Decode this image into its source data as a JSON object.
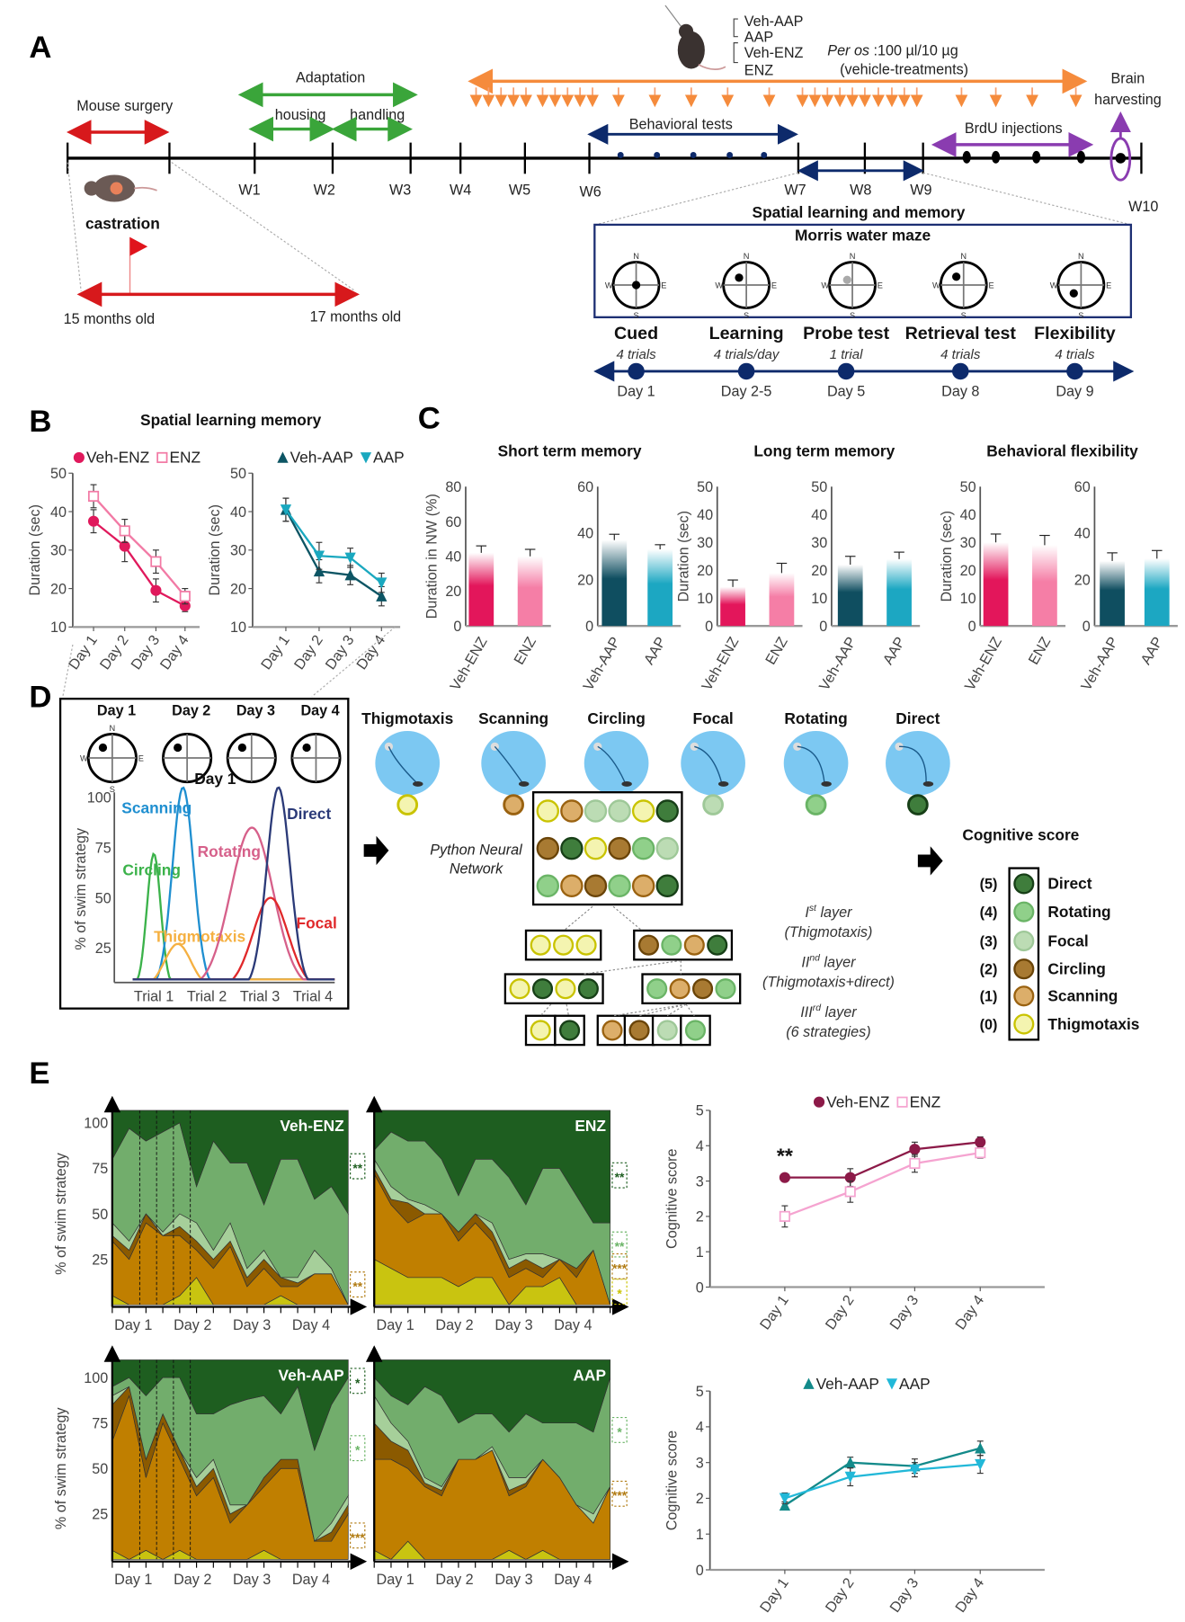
{
  "panel_labels": {
    "a": "A",
    "b": "B",
    "c": "C",
    "d": "D",
    "e": "E"
  },
  "timeline": {
    "weeks": [
      "W1",
      "W2",
      "W3",
      "W4",
      "W5",
      "W6",
      "W7",
      "W8",
      "W9",
      "W10"
    ],
    "mouse_surgery": "Mouse surgery",
    "adaptation": "Adaptation",
    "housing": "housing",
    "handling": "handling",
    "groups": [
      "Veh-AAP",
      "AAP",
      "Veh-ENZ",
      "ENZ"
    ],
    "per_os": "Per os",
    "dose": " :100 µl/10 µg",
    "vehicle": "(vehicle-treatments)",
    "brain": "Brain",
    "harvesting": "harvesting",
    "behavioral_tests": "Behavioral tests",
    "brdu": "BrdU injections",
    "castration": "castration",
    "age_start": "15 months old",
    "age_end": "17 months old",
    "colors": {
      "surgery": "#d7191c",
      "adaptation": "#3aa53a",
      "treatment": "#f58b3c",
      "tests": "#0d2a6b",
      "brdu": "#8a3cb0"
    }
  },
  "mwm": {
    "title": "Spatial learning and memory",
    "box_title": "Morris water maze",
    "compass": {
      "n": "N",
      "s": "S",
      "w": "W",
      "e": "E"
    },
    "phases": [
      {
        "name": "Cued",
        "trials": "4 trials",
        "day": "Day 1"
      },
      {
        "name": "Learning",
        "trials": "4 trials/day",
        "day": "Day 2-5"
      },
      {
        "name": "Probe test",
        "trials": "1 trial",
        "day": "Day 5"
      },
      {
        "name": "Retrieval test",
        "trials": "4 trials",
        "day": "Day 8"
      },
      {
        "name": "Flexibility",
        "trials": "4 trials",
        "day": "Day 9"
      }
    ]
  },
  "panel_b": {
    "title": "Spatial learning memory"
  },
  "panel_c": {
    "titles": [
      "Short term memory",
      "Long term memory",
      "Behavioral flexibility"
    ]
  },
  "panel_d": {
    "days": [
      "Day 1",
      "Day 2",
      "Day 3",
      "Day 4"
    ],
    "compass": {
      "n": "N",
      "s": "S",
      "w": "W",
      "e": "E"
    },
    "network": [
      "Python Neural",
      "Network"
    ],
    "layers": [
      {
        "num": "I",
        "sup": "st",
        "text": " layer",
        "desc": "(Thigmotaxis)"
      },
      {
        "num": "II",
        "sup": "nd",
        "text": " layer",
        "desc": "(Thigmotaxis+direct)"
      },
      {
        "num": "III",
        "sup": "rd",
        "text": " layer",
        "desc": "(6 strategies)"
      }
    ],
    "cognitive_score": "Cognitive score",
    "strategies": [
      {
        "name": "Thigmotaxis",
        "score": "(0)",
        "fill": "#f4f4b0",
        "stroke": "#c9c300"
      },
      {
        "name": "Scanning",
        "score": "(1)",
        "fill": "#dcae6a",
        "stroke": "#9a6210"
      },
      {
        "name": "Circling",
        "score": "(2)",
        "fill": "#a87a32",
        "stroke": "#6a4408"
      },
      {
        "name": "Focal",
        "score": "(3)",
        "fill": "#bcdcb4",
        "stroke": "#9ec898"
      },
      {
        "name": "Rotating",
        "score": "(4)",
        "fill": "#90d08a",
        "stroke": "#6ab466"
      },
      {
        "name": "Direct",
        "score": "(5)",
        "fill": "#3f7d3c",
        "stroke": "#173f17"
      }
    ],
    "network_grid": [
      [
        0,
        1,
        3,
        3,
        0,
        5
      ],
      [
        2,
        5,
        0,
        2,
        4,
        3
      ],
      [
        4,
        1,
        2,
        4,
        1,
        5
      ]
    ],
    "layer1": [
      [
        0,
        0,
        0
      ],
      [
        2,
        4,
        1,
        5
      ]
    ],
    "layer2": [
      [
        0,
        5,
        0,
        5
      ],
      [
        4,
        1,
        2,
        4
      ]
    ],
    "layer3": [
      [
        0
      ],
      [
        5
      ],
      [
        1
      ],
      [
        2
      ],
      [
        3
      ],
      [
        4
      ]
    ]
  },
  "chart_data": [
    {
      "id": "b-enz",
      "type": "line",
      "title": "Spatial learning memory",
      "ylabel": "Duration (sec)",
      "ylim": [
        10,
        50
      ],
      "yticks": [
        10,
        20,
        30,
        40,
        50
      ],
      "categories": [
        "Day 1",
        "Day 2",
        "Day 3",
        "Day 4"
      ],
      "series": [
        {
          "name": "Veh-ENZ",
          "values": [
            37.5,
            31,
            19.5,
            15.5
          ],
          "errors": [
            3,
            4,
            3,
            1.5
          ],
          "color": "#e0195c",
          "marker": "circle"
        },
        {
          "name": "ENZ",
          "values": [
            44,
            35,
            27,
            18
          ],
          "errors": [
            3,
            3,
            3,
            2
          ],
          "color": "#f27aa5",
          "marker": "square"
        }
      ]
    },
    {
      "id": "b-aap",
      "type": "line",
      "ylabel": "Duration (sec)",
      "ylim": [
        10,
        50
      ],
      "yticks": [
        10,
        20,
        30,
        40,
        50
      ],
      "categories": [
        "Day 1",
        "Day 2",
        "Day 3",
        "Day 4"
      ],
      "series": [
        {
          "name": "Veh-AAP",
          "values": [
            40.5,
            24.5,
            23.5,
            18
          ],
          "errors": [
            3,
            3,
            2.5,
            2.5
          ],
          "color": "#0d5564",
          "marker": "triangle"
        },
        {
          "name": "AAP",
          "values": [
            40.5,
            28.5,
            28,
            21.5
          ],
          "errors": [
            3,
            3.5,
            2.5,
            2.5
          ],
          "color": "#1aa8bf",
          "marker": "tri-down"
        }
      ]
    },
    {
      "id": "c1",
      "type": "bar",
      "group": "Short term memory",
      "ylabel": "Duration in NW (%)",
      "ylim": [
        0,
        80
      ],
      "yticks": [
        0,
        20,
        40,
        60,
        80
      ],
      "categories": [
        "Veh-ENZ",
        "ENZ"
      ],
      "values": [
        42,
        40
      ],
      "errors": [
        4,
        4
      ],
      "colors": [
        "#e3165b",
        "#f57ea6"
      ]
    },
    {
      "id": "c2",
      "type": "bar",
      "group": "Short term memory",
      "ylim": [
        0,
        60
      ],
      "yticks": [
        0,
        20,
        40,
        60
      ],
      "categories": [
        "Veh-AAP",
        "AAP"
      ],
      "values": [
        37,
        33
      ],
      "errors": [
        2.5,
        2
      ],
      "colors": [
        "#0f4e60",
        "#1ca7c2"
      ]
    },
    {
      "id": "c3",
      "type": "bar",
      "group": "Long term memory",
      "ylabel": "Duration (sec)",
      "ylim": [
        0,
        50
      ],
      "yticks": [
        0,
        10,
        20,
        30,
        40,
        50
      ],
      "categories": [
        "Veh-ENZ",
        "ENZ"
      ],
      "values": [
        14,
        19
      ],
      "errors": [
        2.5,
        3.5
      ],
      "colors": [
        "#e3165b",
        "#f57ea6"
      ]
    },
    {
      "id": "c4",
      "type": "bar",
      "group": "Long term memory",
      "ylim": [
        0,
        50
      ],
      "yticks": [
        0,
        10,
        20,
        30,
        40,
        50
      ],
      "categories": [
        "Veh-AAP",
        "AAP"
      ],
      "values": [
        22,
        24
      ],
      "errors": [
        3,
        2.5
      ],
      "colors": [
        "#0f4e60",
        "#1ca7c2"
      ]
    },
    {
      "id": "c5",
      "type": "bar",
      "group": "Behavioral flexibility",
      "ylabel": "Duration (sec)",
      "ylim": [
        0,
        50
      ],
      "yticks": [
        0,
        10,
        20,
        30,
        40,
        50
      ],
      "categories": [
        "Veh-ENZ",
        "ENZ"
      ],
      "values": [
        30,
        29
      ],
      "errors": [
        3,
        3.5
      ],
      "colors": [
        "#e3165b",
        "#f57ea6"
      ]
    },
    {
      "id": "c6",
      "type": "bar",
      "group": "Behavioral flexibility",
      "ylim": [
        0,
        60
      ],
      "yticks": [
        0,
        20,
        40,
        60
      ],
      "categories": [
        "Veh-AAP",
        "AAP"
      ],
      "values": [
        28,
        29
      ],
      "errors": [
        3.5,
        3.5
      ],
      "colors": [
        "#0f4e60",
        "#1ca7c2"
      ]
    },
    {
      "id": "d-curves",
      "type": "line",
      "title": "Day 1",
      "ylabel": "% of swim strategy",
      "yticks": [
        25,
        50,
        75,
        100
      ],
      "categories": [
        "Trial 1",
        "Trial 2",
        "Trial 3",
        "Trial 4"
      ],
      "series": [
        {
          "name": "Circling",
          "peak_trial": 1.0,
          "peak_value": 67,
          "width": 0.13,
          "color": "#3bb24a"
        },
        {
          "name": "Scanning",
          "peak_trial": 1.55,
          "peak_value": 100,
          "width": 0.2,
          "color": "#1f8fd0"
        },
        {
          "name": "Thigmotaxis",
          "peak_trial": 1.45,
          "peak_value": 22,
          "width": 0.25,
          "color": "#f5b041"
        },
        {
          "name": "Rotating",
          "peak_trial": 2.85,
          "peak_value": 80,
          "width": 0.4,
          "color": "#d6608a"
        },
        {
          "name": "Focal",
          "peak_trial": 3.2,
          "peak_value": 45,
          "width": 0.33,
          "color": "#e0282a"
        },
        {
          "name": "Direct",
          "peak_trial": 3.35,
          "peak_value": 100,
          "width": 0.22,
          "color": "#2b3a78"
        }
      ]
    },
    {
      "id": "e-veh-enz",
      "type": "area",
      "stacked": true,
      "title": "Veh-ENZ",
      "ylabel": "% of swim strategy",
      "yticks": [
        25,
        50,
        75,
        100
      ],
      "categories": [
        "Day 1",
        "Day 2",
        "Day 3",
        "Day 4"
      ],
      "layers": [
        "Thigmotaxis",
        "Scanning",
        "Circling",
        "Focal",
        "Rotating",
        "Direct"
      ],
      "cumulative": [
        [
          5,
          0,
          0,
          0,
          5,
          15,
          0,
          0,
          0,
          0,
          5,
          0,
          0,
          0,
          0
        ],
        [
          35,
          25,
          45,
          38,
          38,
          30,
          20,
          32,
          10,
          20,
          10,
          10,
          17,
          17,
          0
        ],
        [
          38,
          30,
          50,
          38,
          43,
          35,
          25,
          35,
          15,
          25,
          15,
          12,
          17,
          17,
          0
        ],
        [
          45,
          35,
          50,
          40,
          50,
          45,
          30,
          45,
          20,
          30,
          15,
          15,
          30,
          20,
          0
        ],
        [
          80,
          97,
          90,
          95,
          100,
          65,
          90,
          78,
          78,
          55,
          80,
          80,
          58,
          65,
          50
        ]
      ],
      "significance": [
        {
          "label": "**",
          "level": 75,
          "color": "#1e5e20"
        },
        {
          "label": "**",
          "level": 10,
          "color": "#b07a10"
        }
      ]
    },
    {
      "id": "e-enz",
      "type": "area",
      "stacked": true,
      "title": "ENZ",
      "yticks": [],
      "categories": [
        "Day 1",
        "Day 2",
        "Day 3",
        "Day 4"
      ],
      "layers": [
        "Thigmotaxis",
        "Scanning",
        "Circling",
        "Focal",
        "Rotating",
        "Direct"
      ],
      "cumulative": [
        [
          25,
          20,
          15,
          15,
          15,
          10,
          15,
          15,
          0,
          10,
          10,
          15,
          0,
          0,
          0
        ],
        [
          72,
          55,
          45,
          50,
          50,
          35,
          45,
          35,
          15,
          20,
          15,
          25,
          15,
          30,
          0
        ],
        [
          75,
          58,
          56,
          50,
          50,
          40,
          50,
          40,
          20,
          25,
          20,
          25,
          20,
          30,
          0
        ],
        [
          80,
          65,
          58,
          55,
          50,
          40,
          50,
          45,
          25,
          28,
          28,
          25,
          20,
          30,
          0
        ],
        [
          85,
          95,
          90,
          90,
          80,
          60,
          80,
          80,
          70,
          55,
          75,
          75,
          60,
          45,
          45
        ]
      ],
      "significance": [
        {
          "label": "**",
          "level": 70,
          "color": "#1e5e20"
        },
        {
          "label": "**",
          "level": 32,
          "color": "#6ab466"
        },
        {
          "label": "***",
          "level": 20,
          "color": "#b07a10"
        },
        {
          "label": "*",
          "level": 6,
          "color": "#c9c300"
        }
      ]
    },
    {
      "id": "e-veh-aap",
      "type": "area",
      "stacked": true,
      "title": "Veh-AAP",
      "ylabel": "% of swim strategy",
      "yticks": [
        25,
        50,
        75,
        100
      ],
      "categories": [
        "Day 1",
        "Day 2",
        "Day 3",
        "Day 4"
      ],
      "layers": [
        "Thigmotaxis",
        "Scanning",
        "Circling",
        "Focal",
        "Rotating",
        "Direct"
      ],
      "cumulative": [
        [
          5,
          0,
          5,
          0,
          5,
          0,
          0,
          0,
          0,
          5,
          0,
          0,
          0,
          0,
          0
        ],
        [
          65,
          90,
          45,
          75,
          55,
          35,
          45,
          20,
          30,
          40,
          50,
          50,
          10,
          10,
          25
        ],
        [
          85,
          95,
          55,
          80,
          60,
          40,
          50,
          25,
          30,
          45,
          55,
          55,
          10,
          15,
          30
        ],
        [
          90,
          95,
          55,
          80,
          60,
          45,
          55,
          30,
          30,
          45,
          55,
          55,
          10,
          20,
          35
        ],
        [
          95,
          100,
          90,
          100,
          100,
          80,
          80,
          85,
          88,
          90,
          80,
          95,
          60,
          85,
          100
        ]
      ],
      "significance": [
        {
          "label": "*",
          "level": 97,
          "color": "#1e5e20"
        },
        {
          "label": "*",
          "level": 60,
          "color": "#6ab466"
        },
        {
          "label": "***",
          "level": 12,
          "color": "#b07a10"
        }
      ]
    },
    {
      "id": "e-aap",
      "type": "area",
      "stacked": true,
      "title": "AAP",
      "yticks": [],
      "categories": [
        "Day 1",
        "Day 2",
        "Day 3",
        "Day 4"
      ],
      "layers": [
        "Thigmotaxis",
        "Scanning",
        "Circling",
        "Focal",
        "Rotating",
        "Direct"
      ],
      "cumulative": [
        [
          5,
          0,
          10,
          0,
          0,
          0,
          0,
          0,
          5,
          0,
          5,
          0,
          0,
          0,
          0
        ],
        [
          55,
          55,
          50,
          40,
          35,
          55,
          55,
          60,
          35,
          40,
          55,
          45,
          30,
          20,
          40
        ],
        [
          75,
          65,
          60,
          42,
          38,
          55,
          55,
          60,
          38,
          42,
          55,
          45,
          30,
          20,
          40
        ],
        [
          90,
          75,
          65,
          45,
          40,
          55,
          55,
          62,
          45,
          45,
          55,
          45,
          30,
          25,
          40
        ],
        [
          100,
          90,
          85,
          95,
          90,
          75,
          80,
          80,
          70,
          80,
          75,
          75,
          75,
          70,
          100
        ]
      ],
      "significance": [
        {
          "label": "*",
          "level": 70,
          "color": "#6ab466"
        },
        {
          "label": "***",
          "level": 35,
          "color": "#b07a10"
        }
      ]
    },
    {
      "id": "e-cog-enz",
      "type": "line",
      "ylabel": "Cognitive score",
      "ylim": [
        0,
        5
      ],
      "yticks": [
        0,
        1,
        2,
        3,
        4,
        5
      ],
      "categories": [
        "Day 1",
        "Day 2",
        "Day 3",
        "Day 4"
      ],
      "annotation": {
        "label": "**",
        "category": "Day 1"
      },
      "series": [
        {
          "name": "Veh-ENZ",
          "values": [
            3.1,
            3.1,
            3.9,
            4.1
          ],
          "errors": [
            0.1,
            0.25,
            0.2,
            0.15
          ],
          "color": "#8c1a48",
          "marker": "circle"
        },
        {
          "name": "ENZ",
          "values": [
            2.0,
            2.7,
            3.5,
            3.8
          ],
          "errors": [
            0.3,
            0.3,
            0.25,
            0.15
          ],
          "color": "#f5a3d0",
          "marker": "square"
        }
      ]
    },
    {
      "id": "e-cog-aap",
      "type": "line",
      "ylabel": "Cognitive score",
      "ylim": [
        0,
        5
      ],
      "yticks": [
        0,
        1,
        2,
        3,
        4,
        5
      ],
      "categories": [
        "Day 1",
        "Day 2",
        "Day 3",
        "Day 4"
      ],
      "series": [
        {
          "name": "Veh-AAP",
          "values": [
            1.8,
            3.0,
            2.9,
            3.4
          ],
          "errors": [
            0.1,
            0.15,
            0.2,
            0.2
          ],
          "color": "#138a8a",
          "marker": "triangle"
        },
        {
          "name": "AAP",
          "values": [
            2.0,
            2.6,
            2.8,
            2.95
          ],
          "errors": [
            0.15,
            0.25,
            0.2,
            0.25
          ],
          "color": "#22b8d8",
          "marker": "tri-down"
        }
      ]
    }
  ]
}
